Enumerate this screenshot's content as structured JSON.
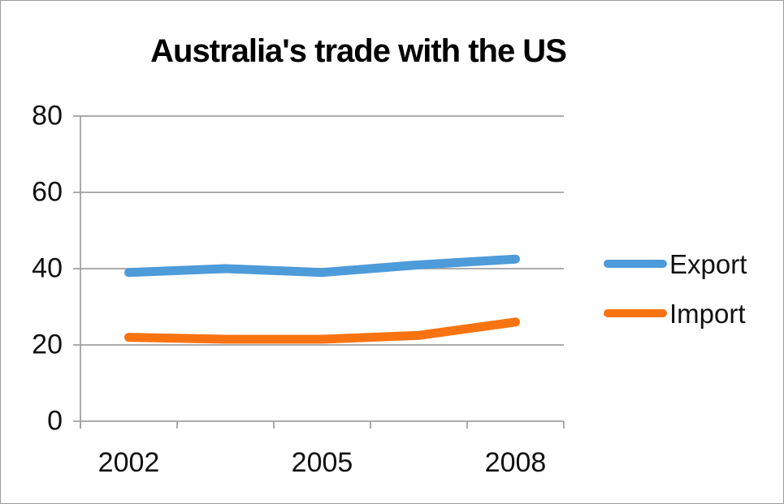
{
  "chart_data": {
    "type": "line",
    "title": "Australia's trade with the US",
    "x_tick_labels": [
      "2002",
      "2005",
      "2008"
    ],
    "x_tick_label_slots": [
      0,
      2,
      4
    ],
    "num_points": 5,
    "series": [
      {
        "name": "Export",
        "color": "#4e9bd9",
        "values": [
          39,
          40,
          39,
          41,
          42.5
        ]
      },
      {
        "name": "Import",
        "color": "#f97411",
        "values": [
          22,
          21.5,
          21.5,
          22.5,
          26
        ]
      }
    ],
    "y_ticks": [
      0,
      20,
      40,
      60,
      80
    ],
    "ylim": [
      0,
      80
    ],
    "xlabel": "",
    "ylabel": "",
    "grid": "horizontal",
    "legend_position": "right",
    "axis_color": "#a0a0a0"
  }
}
